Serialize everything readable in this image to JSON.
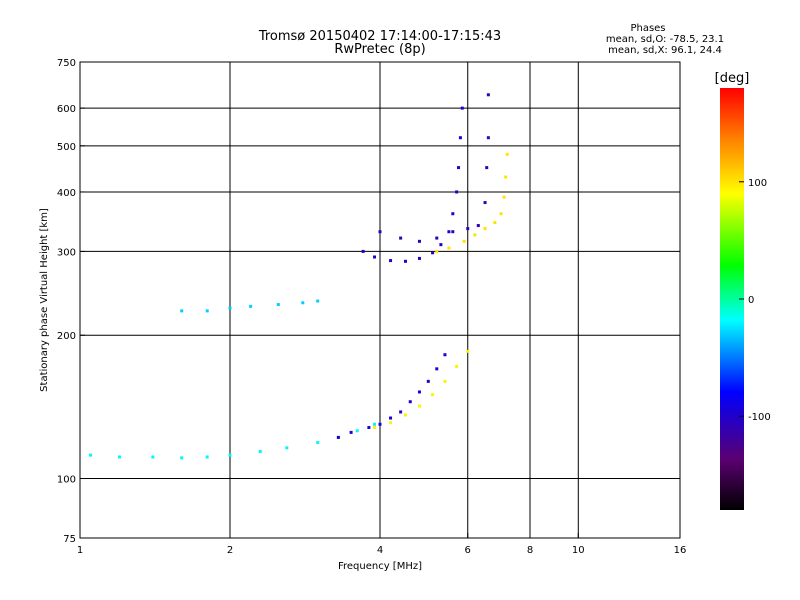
{
  "chart_data": {
    "type": "scatter",
    "title": "Tromsø 20150402 17:14:00-17:15:43",
    "subtitle": "RwPretec (8p)",
    "xlabel": "Frequency [MHz]",
    "ylabel": "Stationary phase Virtual Height [km]",
    "x_scale": "log",
    "y_scale": "log",
    "xlim": [
      1,
      16
    ],
    "ylim": [
      75,
      750
    ],
    "x_ticks": [
      1,
      2,
      4,
      6,
      8,
      10,
      16
    ],
    "x_tick_labels": [
      "1",
      "2",
      "4",
      "6",
      "8",
      "10",
      "16"
    ],
    "y_ticks": [
      75,
      100,
      200,
      300,
      400,
      500,
      600,
      750
    ],
    "y_tick_labels": [
      "75",
      "100",
      "200",
      "300",
      "400",
      "500",
      "600",
      "750"
    ],
    "grid": true,
    "phases_box": {
      "heading": "Phases",
      "line_o": "mean, sd,O: -78.5, 23.1",
      "line_x": "mean, sd,X:  96.1, 24.4"
    },
    "colorbar": {
      "label": "[deg]",
      "tick_labels": [
        "100",
        "0",
        "-100"
      ],
      "ticks": [
        100,
        0,
        -100
      ],
      "range": [
        -180,
        180
      ],
      "colormap": "rainbow"
    },
    "traces": [
      {
        "name_hint": "E-F1 trace low band",
        "phase_deg": -20,
        "points": [
          [
            1.05,
            112
          ],
          [
            1.2,
            111
          ],
          [
            1.4,
            111
          ],
          [
            1.6,
            110.5
          ],
          [
            1.8,
            111
          ],
          [
            2.0,
            112
          ],
          [
            2.3,
            114
          ],
          [
            2.6,
            116
          ],
          [
            3.0,
            119
          ],
          [
            3.3,
            122
          ],
          [
            3.6,
            126
          ],
          [
            3.9,
            130
          ]
        ]
      },
      {
        "name_hint": "O lower ray",
        "phase_deg": -100,
        "points": [
          [
            3.3,
            122
          ],
          [
            3.5,
            125
          ],
          [
            3.8,
            128
          ],
          [
            4.0,
            130
          ],
          [
            4.2,
            134
          ],
          [
            4.4,
            138
          ],
          [
            4.6,
            145
          ],
          [
            4.8,
            152
          ],
          [
            5.0,
            160
          ],
          [
            5.2,
            170
          ],
          [
            5.4,
            182
          ]
        ]
      },
      {
        "name_hint": "X lower ray",
        "phase_deg": 95,
        "points": [
          [
            3.9,
            128
          ],
          [
            4.2,
            131
          ],
          [
            4.5,
            136
          ],
          [
            4.8,
            142
          ],
          [
            5.1,
            150
          ],
          [
            5.4,
            160
          ],
          [
            5.7,
            172
          ],
          [
            6.0,
            185
          ]
        ]
      },
      {
        "name_hint": "F2 O trace",
        "phase_deg": -100,
        "points": [
          [
            3.7,
            300
          ],
          [
            3.9,
            292
          ],
          [
            4.2,
            287
          ],
          [
            4.5,
            286
          ],
          [
            4.8,
            290
          ],
          [
            5.1,
            298
          ],
          [
            5.3,
            310
          ],
          [
            5.5,
            330
          ],
          [
            5.6,
            360
          ],
          [
            5.7,
            400
          ],
          [
            5.75,
            450
          ],
          [
            5.8,
            520
          ],
          [
            5.85,
            600
          ]
        ]
      },
      {
        "name_hint": "F2 X trace",
        "phase_deg": 100,
        "points": [
          [
            5.2,
            300
          ],
          [
            5.5,
            305
          ],
          [
            5.9,
            315
          ],
          [
            6.2,
            325
          ],
          [
            6.5,
            335
          ],
          [
            6.8,
            345
          ],
          [
            7.0,
            360
          ],
          [
            7.1,
            390
          ],
          [
            7.15,
            430
          ],
          [
            7.2,
            480
          ]
        ]
      },
      {
        "name_hint": "F2 second hop",
        "phase_deg": -110,
        "points": [
          [
            4.0,
            330
          ],
          [
            4.4,
            320
          ],
          [
            4.8,
            315
          ],
          [
            5.2,
            320
          ],
          [
            5.6,
            330
          ],
          [
            6.0,
            335
          ],
          [
            6.3,
            340
          ],
          [
            6.5,
            380
          ],
          [
            6.55,
            450
          ],
          [
            6.6,
            520
          ],
          [
            6.6,
            640
          ]
        ]
      },
      {
        "name_hint": "Oblique patch",
        "phase_deg": -30,
        "points": [
          [
            1.6,
            225
          ],
          [
            1.8,
            225
          ],
          [
            2.0,
            228
          ],
          [
            2.2,
            230
          ],
          [
            2.5,
            232
          ],
          [
            2.8,
            234
          ],
          [
            3.0,
            236
          ]
        ]
      }
    ]
  }
}
